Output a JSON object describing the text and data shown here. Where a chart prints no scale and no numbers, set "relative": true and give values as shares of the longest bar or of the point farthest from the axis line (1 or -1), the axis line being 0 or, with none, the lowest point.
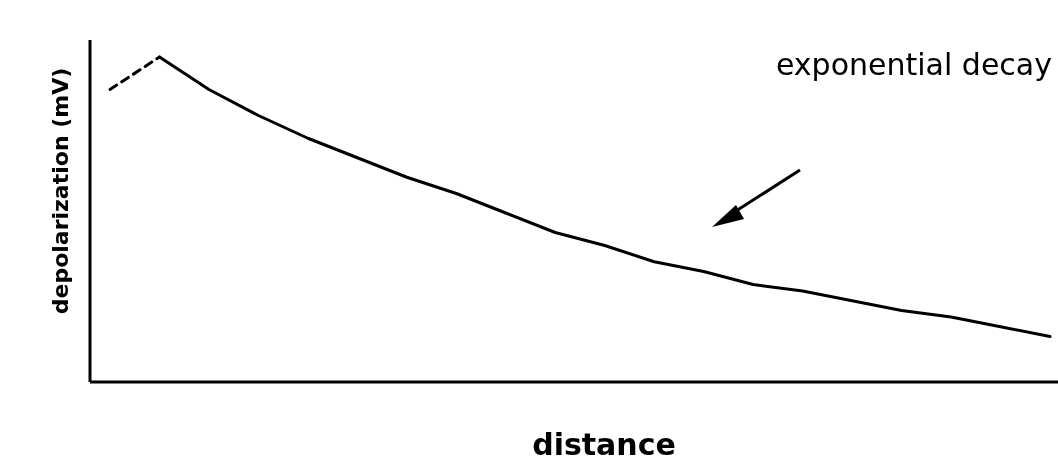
{
  "chart_data": {
    "type": "line",
    "relative": true,
    "xlabel": "distance",
    "ylabel": "depolarization (mV)",
    "annotations": [
      "exponential decay"
    ],
    "marker": "none",
    "categories": [
      null,
      null,
      null,
      null,
      null,
      null,
      null,
      null,
      null,
      null,
      null,
      null,
      null,
      null,
      null,
      null,
      null,
      null,
      null,
      null
    ],
    "series": [
      {
        "color": "#000000",
        "line_style": "dashed",
        "values": [
          0.9,
          1.0,
          null,
          null,
          null,
          null,
          null,
          null,
          null,
          null,
          null,
          null,
          null,
          null,
          null,
          null,
          null,
          null,
          null,
          null
        ]
      },
      {
        "color": "#000000",
        "line_style": "solid",
        "values": [
          null,
          1.0,
          0.9,
          0.82,
          0.75,
          0.69,
          0.63,
          0.58,
          0.52,
          0.46,
          0.42,
          0.37,
          0.34,
          0.3,
          0.28,
          0.25,
          0.22,
          0.2,
          0.17,
          0.14
        ]
      }
    ]
  }
}
